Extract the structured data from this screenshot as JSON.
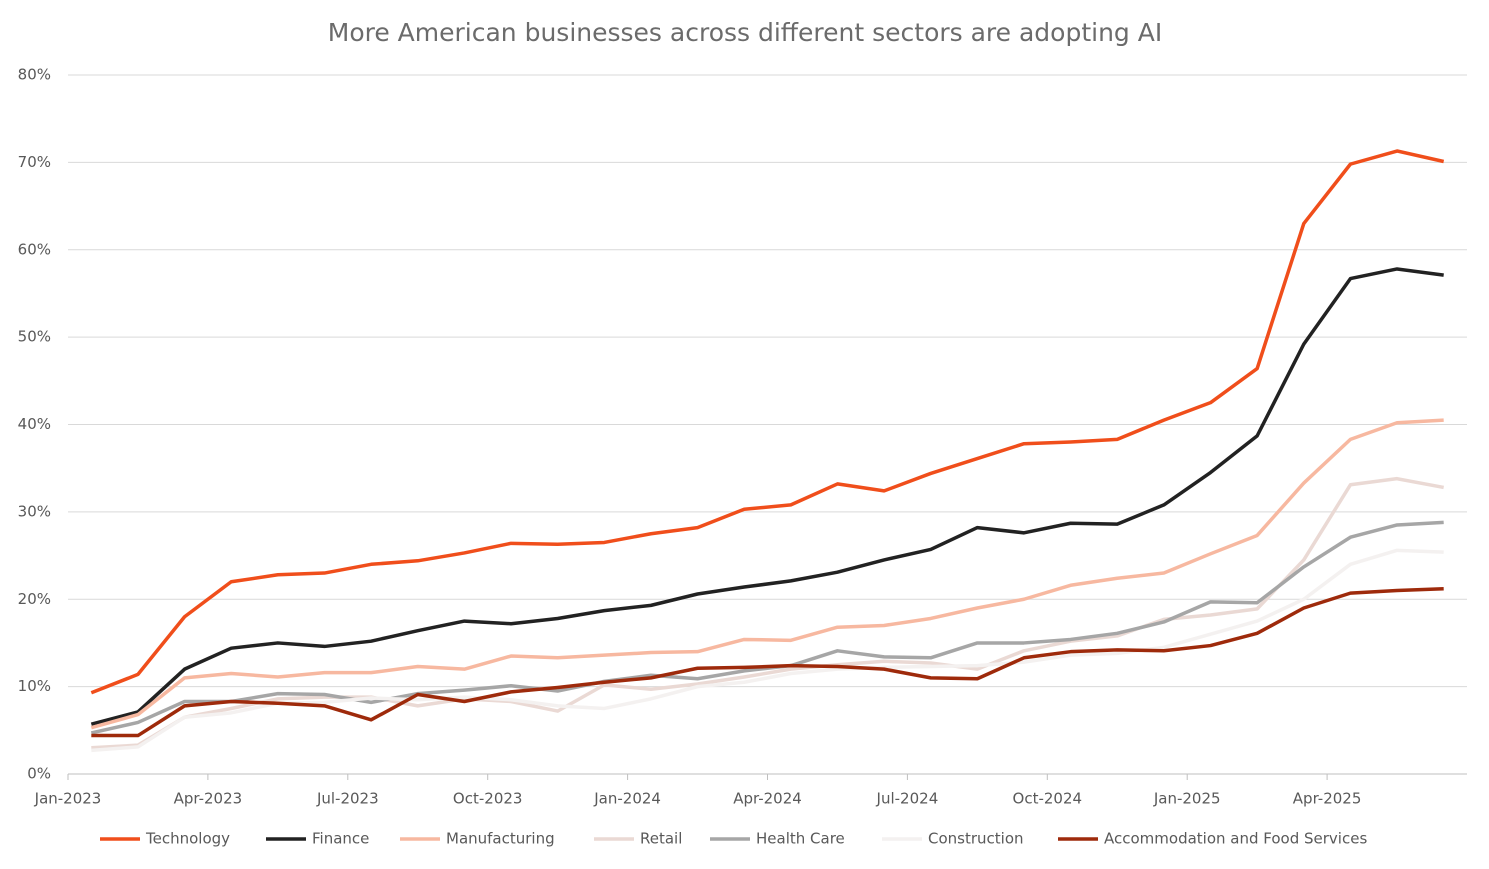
{
  "chart_data": {
    "type": "line",
    "title": "More American businesses across different sectors are adopting AI",
    "x": [
      0.5,
      1.5,
      2.5,
      3.5,
      4.5,
      5.5,
      6.5,
      7.5,
      8.5,
      9.5,
      10.5,
      11.5,
      12.5,
      13.5,
      14.5,
      15.5,
      16.5,
      17.5,
      18.5,
      19.5,
      20.5,
      21.5,
      22.5,
      23.5,
      24.5,
      25.5,
      26.5,
      27.5,
      28.5,
      29.5
    ],
    "xlim": [
      0,
      30
    ],
    "xticks": [
      {
        "value": 0,
        "label": "Jan-2023"
      },
      {
        "value": 3,
        "label": "Apr-2023"
      },
      {
        "value": 6,
        "label": "Jul-2023"
      },
      {
        "value": 9,
        "label": "Oct-2023"
      },
      {
        "value": 12,
        "label": "Jan-2024"
      },
      {
        "value": 15,
        "label": "Apr-2024"
      },
      {
        "value": 18,
        "label": "Jul-2024"
      },
      {
        "value": 21,
        "label": "Oct-2024"
      },
      {
        "value": 24,
        "label": "Jan-2025"
      },
      {
        "value": 27,
        "label": "Apr-2025"
      }
    ],
    "ylim": [
      0,
      80
    ],
    "yticks": [
      {
        "value": 0,
        "label": "0%"
      },
      {
        "value": 10,
        "label": "10%"
      },
      {
        "value": 20,
        "label": "20%"
      },
      {
        "value": 30,
        "label": "30%"
      },
      {
        "value": 40,
        "label": "40%"
      },
      {
        "value": 50,
        "label": "50%"
      },
      {
        "value": 60,
        "label": "60%"
      },
      {
        "value": 70,
        "label": "70%"
      },
      {
        "value": 80,
        "label": "80%"
      }
    ],
    "grid": true,
    "legend": "bottom",
    "series": [
      {
        "name": "Technology",
        "color": "#f04e1b",
        "values": [
          9.3,
          11.4,
          18,
          22,
          22.8,
          23,
          24,
          24.4,
          25.3,
          26.4,
          26.3,
          26.5,
          27.5,
          28.2,
          30.3,
          30.8,
          33.2,
          32.4,
          34.4,
          36.1,
          37.8,
          38,
          38.3,
          40.5,
          42.5,
          46.4,
          63,
          69.8,
          71.3,
          70.1
        ]
      },
      {
        "name": "Finance",
        "color": "#222222",
        "values": [
          5.7,
          7.1,
          12,
          14.4,
          15,
          14.6,
          15.2,
          16.4,
          17.5,
          17.2,
          17.8,
          18.7,
          19.3,
          20.6,
          21.4,
          22.1,
          23.1,
          24.5,
          25.7,
          28.2,
          27.6,
          28.7,
          28.6,
          30.8,
          34.5,
          38.7,
          49.2,
          56.7,
          57.8,
          57.1
        ]
      },
      {
        "name": "Manufacturing",
        "color": "#f7b8a0",
        "values": [
          5.3,
          6.8,
          11,
          11.5,
          11.1,
          11.6,
          11.6,
          12.3,
          12,
          13.5,
          13.3,
          13.6,
          13.9,
          14,
          15.4,
          15.3,
          16.8,
          17,
          17.8,
          19,
          20,
          21.6,
          22.4,
          23,
          25.2,
          27.3,
          33.3,
          38.3,
          40.2,
          40.5
        ]
      },
      {
        "name": "Retail",
        "color": "#ead9d4",
        "values": [
          3,
          3.3,
          6.5,
          7.5,
          8.6,
          8.8,
          8.8,
          7.8,
          8.6,
          8.3,
          7.2,
          10.2,
          9.7,
          10.3,
          11.1,
          12,
          12.5,
          12.9,
          12.7,
          12,
          14.1,
          15.2,
          15.8,
          17.7,
          18.2,
          18.9,
          24.5,
          33.1,
          33.8,
          32.8
        ]
      },
      {
        "name": "Health Care",
        "color": "#a6a6a6",
        "values": [
          4.7,
          5.9,
          8.3,
          8.3,
          9.2,
          9.1,
          8.2,
          9.2,
          9.6,
          10.1,
          9.5,
          10.6,
          11.3,
          10.9,
          11.8,
          12.4,
          14.1,
          13.4,
          13.3,
          15,
          15,
          15.4,
          16.1,
          17.4,
          19.7,
          19.6,
          23.7,
          27.1,
          28.5,
          28.8
        ]
      },
      {
        "name": "Construction",
        "color": "#f4f1f0",
        "values": [
          2.7,
          3.1,
          6.5,
          7,
          8.1,
          8.2,
          8.7,
          8.5,
          8.8,
          8.5,
          7.8,
          7.5,
          8.6,
          10,
          10.5,
          11.5,
          12,
          12.2,
          12.3,
          12.4,
          12.8,
          13.6,
          13.8,
          14.5,
          16,
          17.5,
          20,
          24,
          25.6,
          25.4
        ]
      },
      {
        "name": "Accommodation and Food Services",
        "color": "#9e2a0b",
        "values": [
          4.4,
          4.4,
          7.8,
          8.3,
          8.1,
          7.8,
          6.2,
          9.1,
          8.3,
          9.4,
          9.9,
          10.5,
          11,
          12.1,
          12.2,
          12.4,
          12.3,
          12,
          11,
          10.9,
          13.3,
          14,
          14.2,
          14.1,
          14.7,
          16.1,
          19,
          20.7,
          21,
          21.2
        ]
      }
    ]
  }
}
